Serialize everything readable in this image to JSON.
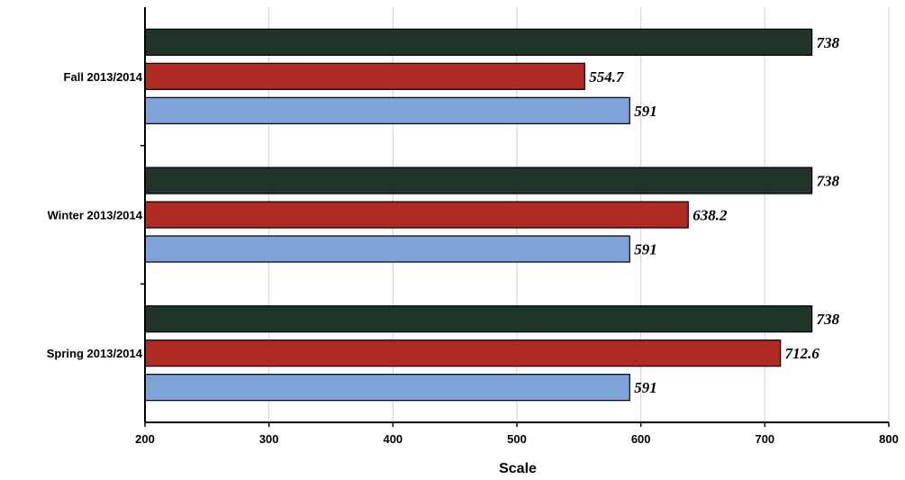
{
  "chart_data": {
    "type": "bar",
    "orientation": "horizontal",
    "categories": [
      "Fall 2013/2014",
      "Winter 2013/2014",
      "Spring 2013/2014"
    ],
    "series": [
      {
        "color": "#213428",
        "values": [
          738,
          738,
          738
        ],
        "labels": [
          "738",
          "738",
          "738"
        ]
      },
      {
        "color": "#b02a24",
        "values": [
          554.7,
          638.2,
          712.6
        ],
        "labels": [
          "554.7",
          "638.2",
          "712.6"
        ]
      },
      {
        "color": "#7fa3d9",
        "values": [
          591,
          591,
          591
        ],
        "labels": [
          "591",
          "591",
          "591"
        ]
      }
    ],
    "xlabel": "Scale",
    "xlim": [
      200,
      800
    ],
    "xticks": [
      200,
      300,
      400,
      500,
      600,
      700,
      800
    ],
    "xtick_labels": [
      "200",
      "300",
      "400",
      "500",
      "600",
      "700",
      "800"
    ],
    "grid": "vertical",
    "legend": "none"
  }
}
